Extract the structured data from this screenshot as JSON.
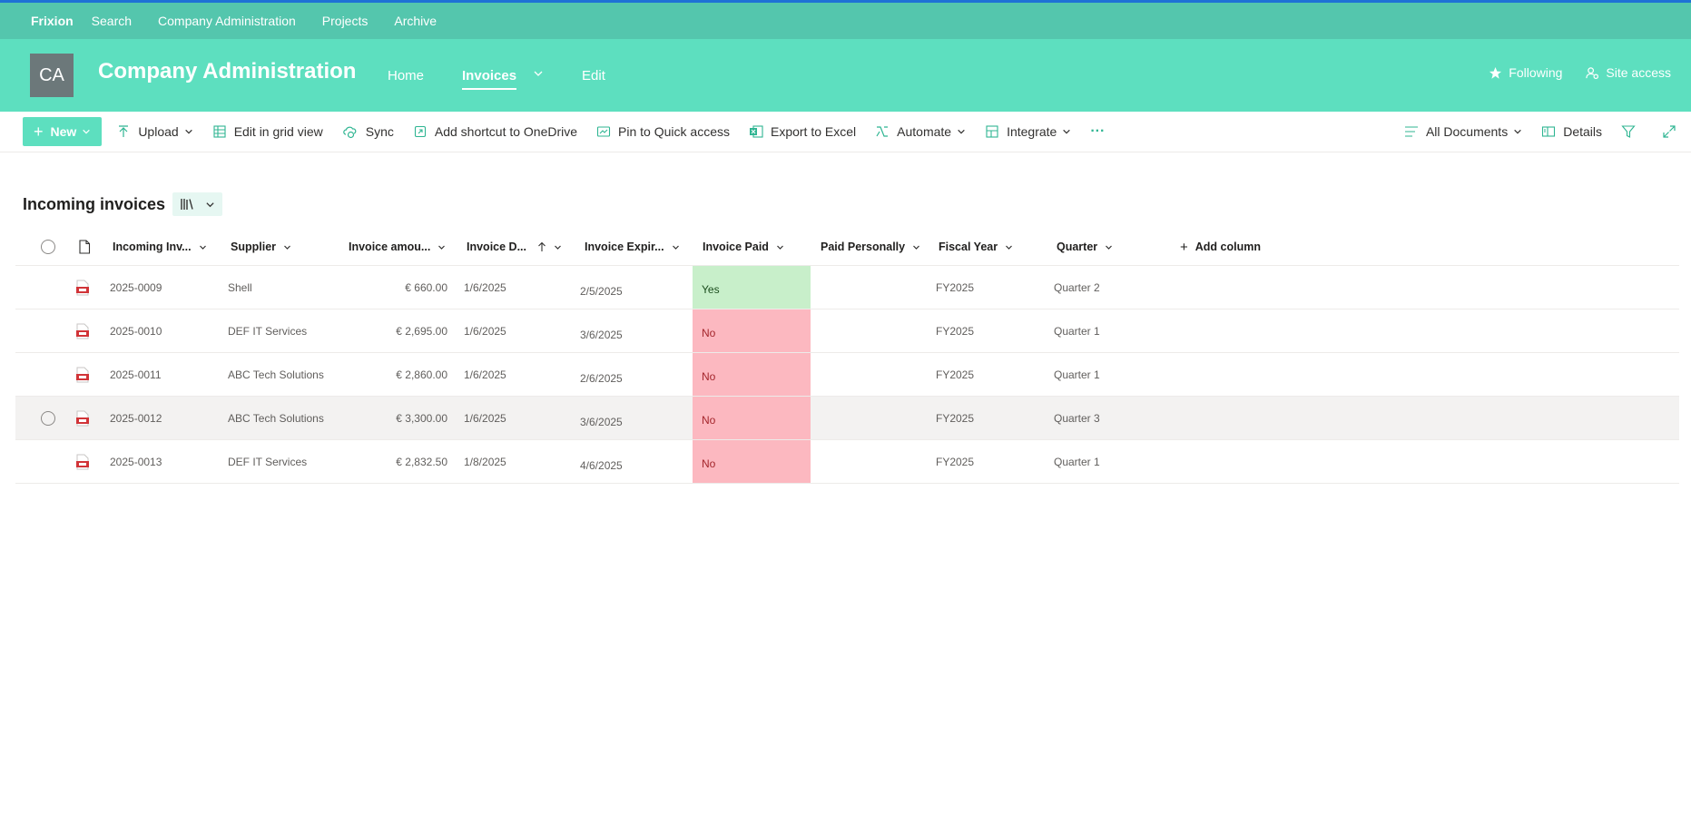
{
  "suite": {
    "brand": "Frixion",
    "links": [
      "Search",
      "Company Administration",
      "Projects",
      "Archive"
    ]
  },
  "site": {
    "logo_initials": "CA",
    "title": "Company Administration",
    "nav": {
      "home": "Home",
      "invoices": "Invoices",
      "edit": "Edit"
    },
    "following": "Following",
    "site_access": "Site access"
  },
  "commands": {
    "new": "New",
    "upload": "Upload",
    "edit_grid": "Edit in grid view",
    "sync": "Sync",
    "add_shortcut": "Add shortcut to OneDrive",
    "pin": "Pin to Quick access",
    "export": "Export to Excel",
    "automate": "Automate",
    "integrate": "Integrate",
    "more": "···",
    "view": "All Documents",
    "details": "Details"
  },
  "library": {
    "title": "Incoming invoices",
    "columns": {
      "name": "Incoming Inv...",
      "supplier": "Supplier",
      "amount": "Invoice amou...",
      "date": "Invoice D...",
      "expiry": "Invoice Expir...",
      "paid": "Invoice Paid",
      "paid_personally": "Paid Personally",
      "fiscal_year": "Fiscal Year",
      "quarter": "Quarter",
      "add_column": "Add column"
    },
    "rows": [
      {
        "name": "2025-0009",
        "supplier": "Shell",
        "amount": "€ 660.00",
        "date": "1/6/2025",
        "expiry": "2/5/2025",
        "paid": "Yes",
        "paid_personally": "",
        "fiscal_year": "FY2025",
        "quarter": "Quarter 2"
      },
      {
        "name": "2025-0010",
        "supplier": "DEF IT Services",
        "amount": "€ 2,695.00",
        "date": "1/6/2025",
        "expiry": "3/6/2025",
        "paid": "No",
        "paid_personally": "",
        "fiscal_year": "FY2025",
        "quarter": "Quarter 1"
      },
      {
        "name": "2025-0011",
        "supplier": "ABC Tech Solutions",
        "amount": "€ 2,860.00",
        "date": "1/6/2025",
        "expiry": "2/6/2025",
        "paid": "No",
        "paid_personally": "",
        "fiscal_year": "FY2025",
        "quarter": "Quarter 1"
      },
      {
        "name": "2025-0012",
        "supplier": "ABC Tech Solutions",
        "amount": "€ 3,300.00",
        "date": "1/6/2025",
        "expiry": "3/6/2025",
        "paid": "No",
        "paid_personally": "",
        "fiscal_year": "FY2025",
        "quarter": "Quarter 3"
      },
      {
        "name": "2025-0013",
        "supplier": "DEF IT Services",
        "amount": "€ 2,832.50",
        "date": "1/8/2025",
        "expiry": "4/6/2025",
        "paid": "No",
        "paid_personally": "",
        "fiscal_year": "FY2025",
        "quarter": "Quarter 1"
      }
    ]
  },
  "colors": {
    "suite_bar": "#54c6ad",
    "site_header": "#5ddfbf",
    "accent": "#5ddfbf",
    "paid_yes": "#c8efca",
    "paid_no": "#fcb8c0"
  },
  "icons": {
    "following": "star-icon",
    "site_access": "people-settings-icon",
    "file": "pdf-file-icon"
  }
}
